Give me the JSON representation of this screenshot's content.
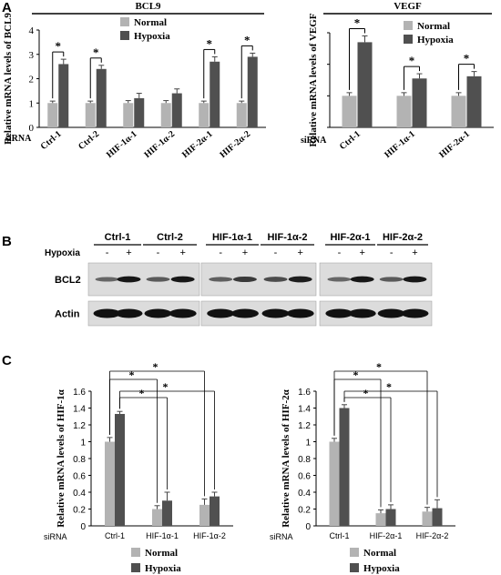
{
  "colors": {
    "normal": "#b3b3b3",
    "hypoxia": "#505050",
    "axis": "#000000",
    "blot_bg": "#dcdcdc",
    "band": "#111111"
  },
  "panel_letters": [
    "A",
    "B",
    "C"
  ],
  "row_label": "siRNA",
  "legend": {
    "normal": "Normal",
    "hypoxia": "Hypoxia"
  },
  "significance": "*",
  "blot": {
    "hypoxia_label": "Hypoxia",
    "minus": "-",
    "plus": "+",
    "lane_groups": [
      "Ctrl-1",
      "Ctrl-2",
      "HIF-1α-1",
      "HIF-1α-2",
      "HIF-2α-1",
      "HIF-2α-2"
    ],
    "rows": [
      "BCL2",
      "Actin"
    ]
  },
  "chart_data": [
    {
      "type": "bar",
      "title": "BCL9",
      "ylabel": "Relative mRNA levels of BCL9",
      "ylim": [
        0,
        4
      ],
      "yticks": [
        "0",
        "1",
        "2",
        "3",
        "4"
      ],
      "categories": [
        "Ctrl-1",
        "Ctrl-2",
        "HIF-1α-1",
        "HIF-1α-2",
        "HIF-2α-1",
        "HIF-2α-2"
      ],
      "series": [
        {
          "name": "Normal",
          "values": [
            1.0,
            1.0,
            1.0,
            1.0,
            1.0,
            1.0
          ],
          "errors": [
            0.08,
            0.08,
            0.1,
            0.1,
            0.08,
            0.08
          ]
        },
        {
          "name": "Hypoxia",
          "values": [
            2.6,
            2.4,
            1.2,
            1.4,
            2.7,
            2.9
          ],
          "errors": [
            0.2,
            0.15,
            0.2,
            0.18,
            0.2,
            0.15
          ]
        }
      ],
      "significant": [
        true,
        true,
        false,
        false,
        true,
        true
      ]
    },
    {
      "type": "bar",
      "title": "VEGF",
      "ylabel": "Relative mRNA levels of VEGF",
      "ylim": [
        0,
        3
      ],
      "categories": [
        "Ctrl-1",
        "HIF-1α-1",
        "HIF-2α-1"
      ],
      "series": [
        {
          "name": "Normal",
          "values": [
            1.0,
            1.0,
            1.0
          ],
          "errors": [
            0.1,
            0.1,
            0.1
          ]
        },
        {
          "name": "Hypoxia",
          "values": [
            2.7,
            1.55,
            1.62
          ],
          "errors": [
            0.2,
            0.15,
            0.15
          ]
        }
      ],
      "significant": [
        true,
        true,
        true
      ]
    },
    {
      "type": "bar",
      "ylabel": "Relative mRNA levels of HIF-1α",
      "ylim": [
        0,
        1.6
      ],
      "yticks": [
        "0",
        "0.2",
        "0.4",
        "0.6",
        "0.8",
        "1",
        "1.2",
        "1.4",
        "1.6"
      ],
      "categories": [
        "Ctrl-1",
        "HIF-1α-1",
        "HIF-1α-2"
      ],
      "series": [
        {
          "name": "Normal",
          "values": [
            1.0,
            0.2,
            0.25
          ],
          "errors": [
            0.05,
            0.04,
            0.07
          ]
        },
        {
          "name": "Hypoxia",
          "values": [
            1.33,
            0.3,
            0.35
          ],
          "errors": [
            0.03,
            0.1,
            0.05
          ]
        }
      ]
    },
    {
      "type": "bar",
      "ylabel": "Relative mRNA levels of HIF-2α",
      "ylim": [
        0,
        1.6
      ],
      "yticks": [
        "0",
        "0.2",
        "0.4",
        "0.6",
        "0.8",
        "1",
        "1.2",
        "1.4",
        "1.6"
      ],
      "categories": [
        "Ctrl-1",
        "HIF-2α-1",
        "HIF-2α-2"
      ],
      "series": [
        {
          "name": "Normal",
          "values": [
            1.0,
            0.15,
            0.17
          ],
          "errors": [
            0.04,
            0.04,
            0.05
          ]
        },
        {
          "name": "Hypoxia",
          "values": [
            1.4,
            0.2,
            0.21
          ],
          "errors": [
            0.04,
            0.05,
            0.1
          ]
        }
      ]
    }
  ]
}
